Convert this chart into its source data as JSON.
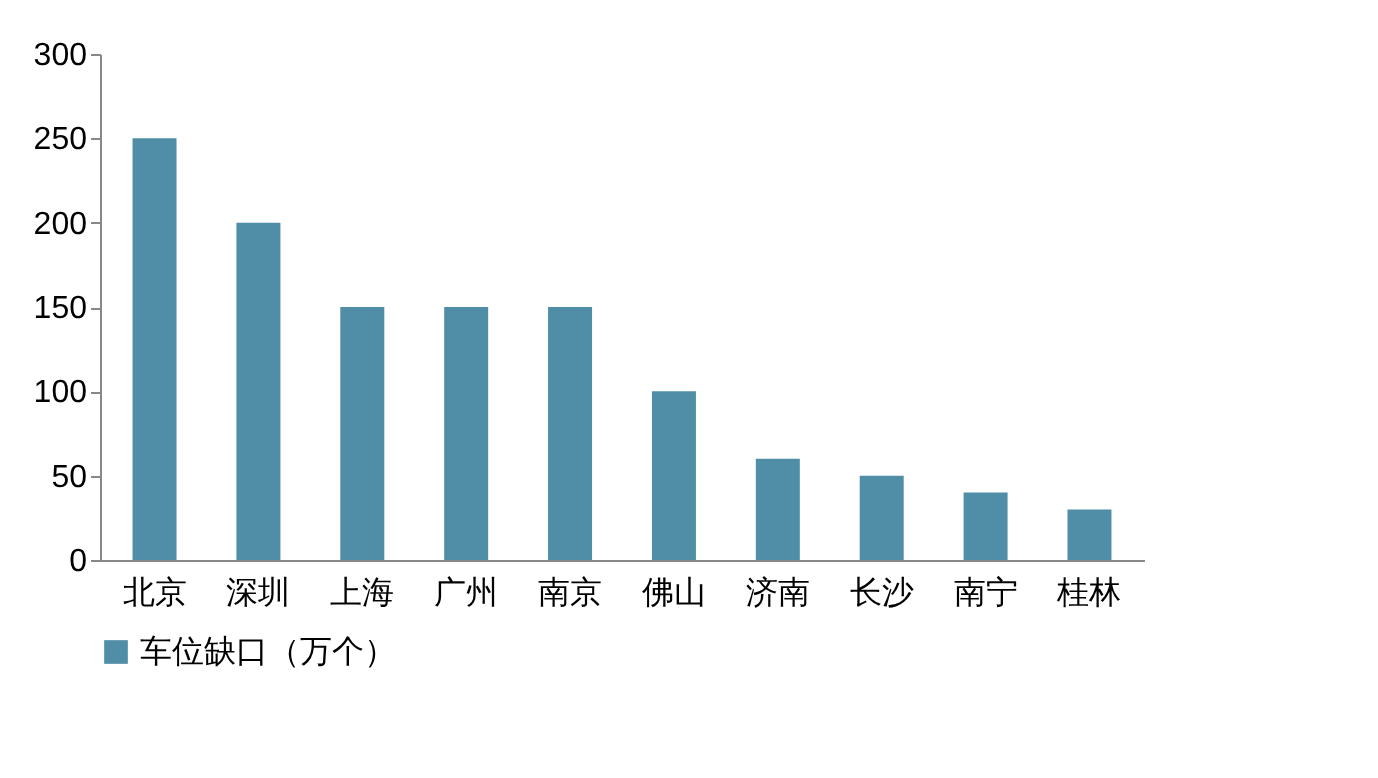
{
  "chart_data": {
    "type": "bar",
    "categories": [
      "北京",
      "深圳",
      "上海",
      "广州",
      "南京",
      "佛山",
      "济南",
      "长沙",
      "南宁",
      "桂林"
    ],
    "series": [
      {
        "name": "车位缺口（万个）",
        "color": "#4f8ea6",
        "values": [
          250,
          200,
          150,
          150,
          150,
          100,
          60,
          50,
          40,
          30
        ]
      }
    ],
    "ylim": [
      0,
      300
    ],
    "yticks": [
      0,
      50,
      100,
      150,
      200,
      250,
      300
    ],
    "grid": false,
    "legend": "bottom"
  }
}
